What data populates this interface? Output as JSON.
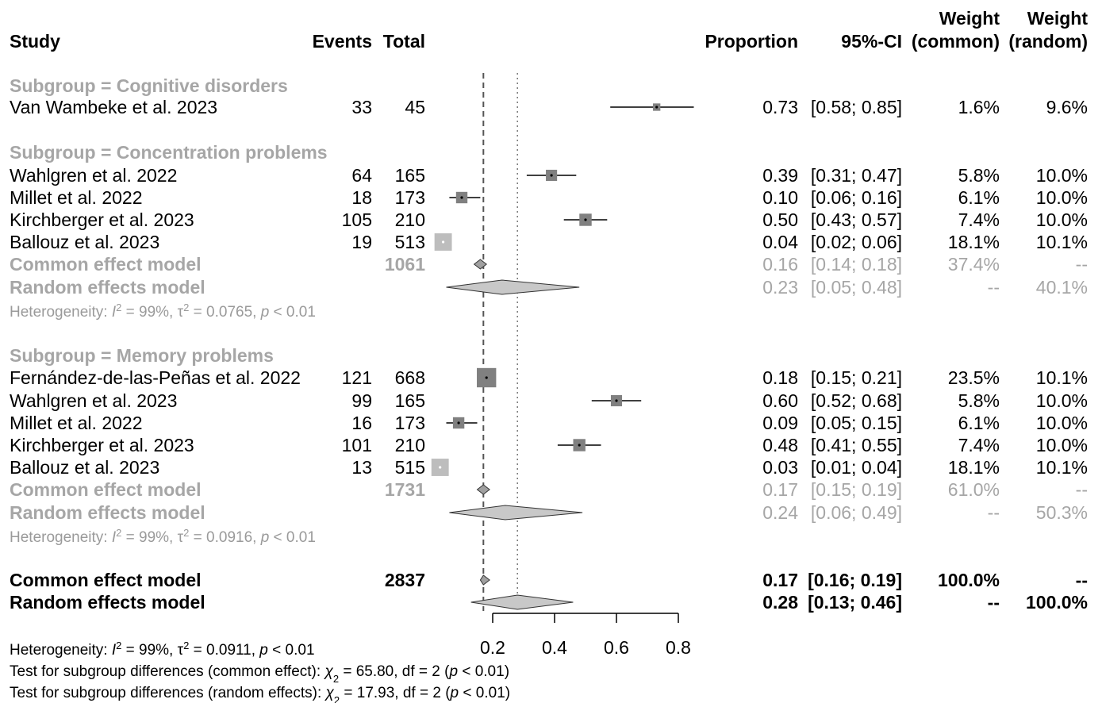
{
  "chart_data": {
    "type": "forest",
    "header": {
      "study": "Study",
      "events": "Events",
      "total": "Total",
      "proportion": "Proportion",
      "ci": "95%-CI",
      "weight_common_1": "Weight",
      "weight_common_2": "(common)",
      "weight_random_1": "Weight",
      "weight_random_2": "(random)"
    },
    "x_axis": {
      "ticks": [
        0.2,
        0.4,
        0.6,
        0.8
      ],
      "tick_labels": [
        "0.2",
        "0.4",
        "0.6",
        "0.8"
      ],
      "xlim": [
        0.2,
        0.8
      ]
    },
    "reference_lines": {
      "common_effect": 0.17,
      "random_effects": 0.28
    },
    "subgroups": [
      {
        "label": "Subgroup = Cognitive disorders",
        "studies": [
          {
            "study": "Van Wambeke et al. 2023",
            "events": "33",
            "total": "45",
            "proportion": "0.73",
            "ci": "[0.58; 0.85]",
            "weight_common": "1.6%",
            "weight_random": "9.6%",
            "est": 0.73,
            "lower": 0.58,
            "upper": 0.85,
            "w": 1.6
          }
        ]
      },
      {
        "label": "Subgroup = Concentration problems",
        "studies": [
          {
            "study": "Wahlgren et al. 2022",
            "events": "64",
            "total": "165",
            "proportion": "0.39",
            "ci": "[0.31; 0.47]",
            "weight_common": "5.8%",
            "weight_random": "10.0%",
            "est": 0.39,
            "lower": 0.31,
            "upper": 0.47,
            "w": 5.8
          },
          {
            "study": "Millet et al. 2022",
            "events": "18",
            "total": "173",
            "proportion": "0.10",
            "ci": "[0.06; 0.16]",
            "weight_common": "6.1%",
            "weight_random": "10.0%",
            "est": 0.1,
            "lower": 0.06,
            "upper": 0.16,
            "w": 6.1
          },
          {
            "study": "Kirchberger et al. 2023",
            "events": "105",
            "total": "210",
            "proportion": "0.50",
            "ci": "[0.43; 0.57]",
            "weight_common": "7.4%",
            "weight_random": "10.0%",
            "est": 0.5,
            "lower": 0.43,
            "upper": 0.57,
            "w": 7.4
          },
          {
            "study": "Ballouz et al. 2023",
            "events": "19",
            "total": "513",
            "proportion": "0.04",
            "ci": "[0.02; 0.06]",
            "weight_common": "18.1%",
            "weight_random": "10.1%",
            "est": 0.04,
            "lower": 0.02,
            "upper": 0.06,
            "w": 18.1
          }
        ],
        "common": {
          "label": "Common effect model",
          "total": "1061",
          "proportion": "0.16",
          "ci": "[0.14; 0.18]",
          "weight_common": "37.4%",
          "weight_random": "--",
          "est": 0.16,
          "lower": 0.14,
          "upper": 0.18
        },
        "random": {
          "label": "Random effects model",
          "proportion": "0.23",
          "ci": "[0.05; 0.48]",
          "weight_common": "--",
          "weight_random": "40.1%",
          "est": 0.23,
          "lower": 0.05,
          "upper": 0.48
        },
        "heterogeneity": {
          "prefix": "Heterogeneity: ",
          "i": "I",
          "i_rest": " = 99%, ",
          "tau": "τ",
          "tau_rest": " = 0.0765, ",
          "p": "p",
          "p_rest": " < 0.01"
        }
      },
      {
        "label": "Subgroup = Memory problems",
        "studies": [
          {
            "study": "Fernández-de-las-Peñas et al. 2022",
            "events": "121",
            "total": "668",
            "proportion": "0.18",
            "ci": "[0.15; 0.21]",
            "weight_common": "23.5%",
            "weight_random": "10.1%",
            "est": 0.18,
            "lower": 0.15,
            "upper": 0.21,
            "w": 23.5
          },
          {
            "study": "Wahlgren et al. 2023",
            "events": "99",
            "total": "165",
            "proportion": "0.60",
            "ci": "[0.52; 0.68]",
            "weight_common": "5.8%",
            "weight_random": "10.0%",
            "est": 0.6,
            "lower": 0.52,
            "upper": 0.68,
            "w": 5.8
          },
          {
            "study": "Millet et al. 2022",
            "events": "16",
            "total": "173",
            "proportion": "0.09",
            "ci": "[0.05; 0.15]",
            "weight_common": "6.1%",
            "weight_random": "10.0%",
            "est": 0.09,
            "lower": 0.05,
            "upper": 0.15,
            "w": 6.1
          },
          {
            "study": "Kirchberger et al. 2023",
            "events": "101",
            "total": "210",
            "proportion": "0.48",
            "ci": "[0.41; 0.55]",
            "weight_common": "7.4%",
            "weight_random": "10.0%",
            "est": 0.48,
            "lower": 0.41,
            "upper": 0.55,
            "w": 7.4
          },
          {
            "study": "Ballouz et al. 2023",
            "events": "13",
            "total": "515",
            "proportion": "0.03",
            "ci": "[0.01; 0.04]",
            "weight_common": "18.1%",
            "weight_random": "10.1%",
            "est": 0.03,
            "lower": 0.01,
            "upper": 0.04,
            "w": 18.1
          }
        ],
        "common": {
          "label": "Common effect model",
          "total": "1731",
          "proportion": "0.17",
          "ci": "[0.15; 0.19]",
          "weight_common": "61.0%",
          "weight_random": "--",
          "est": 0.17,
          "lower": 0.15,
          "upper": 0.19
        },
        "random": {
          "label": "Random effects model",
          "proportion": "0.24",
          "ci": "[0.06; 0.49]",
          "weight_common": "--",
          "weight_random": "50.3%",
          "est": 0.24,
          "lower": 0.06,
          "upper": 0.49
        },
        "heterogeneity": {
          "prefix": "Heterogeneity: ",
          "i": "I",
          "i_rest": " = 99%, ",
          "tau": "τ",
          "tau_rest": " = 0.0916, ",
          "p": "p",
          "p_rest": " < 0.01"
        }
      }
    ],
    "overall": {
      "common": {
        "label": "Common effect model",
        "total": "2837",
        "proportion": "0.17",
        "ci": "[0.16; 0.19]",
        "weight_common": "100.0%",
        "weight_random": "--",
        "est": 0.17,
        "lower": 0.16,
        "upper": 0.19
      },
      "random": {
        "label": "Random effects model",
        "proportion": "0.28",
        "ci": "[0.13; 0.46]",
        "weight_common": "--",
        "weight_random": "100.0%",
        "est": 0.28,
        "lower": 0.13,
        "upper": 0.46
      }
    },
    "footer": {
      "heterogeneity": {
        "prefix": "Heterogeneity: ",
        "i": "I",
        "i_rest": " = 99%, ",
        "tau": "τ",
        "tau_rest": " = 0.0911, ",
        "p": "p",
        "p_rest": " < 0.01"
      },
      "test_common": {
        "prefix": "Test for subgroup differences (common effect): ",
        "chi": "χ",
        "sub": "2",
        "rest": " = 65.80, df = 2 (",
        "p": "p",
        "p_rest": " < 0.01)"
      },
      "test_random": {
        "prefix": "Test for subgroup differences (random effects): ",
        "chi": "χ",
        "sub": "2",
        "rest": " = 17.93, df = 2 (",
        "p": "p",
        "p_rest": " < 0.01)"
      }
    },
    "colors": {
      "subgroup_text": "#a6a6a6",
      "square": "#808080",
      "diamond": "#c8c8c8",
      "heterogeneity_text": "#9a9a9a"
    }
  }
}
